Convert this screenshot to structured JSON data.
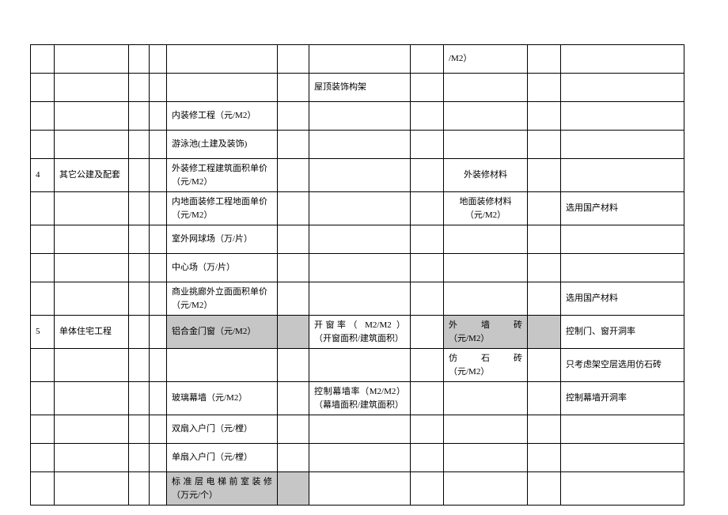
{
  "rows": [
    {
      "a": "",
      "b": "",
      "c": "",
      "d": "",
      "e": "",
      "f": "",
      "g": "",
      "h": "",
      "i": "/M2）",
      "j": "",
      "k": ""
    },
    {
      "a": "",
      "b": "",
      "c": "",
      "d": "",
      "e": "",
      "f": "",
      "g": "屋顶装饰构架",
      "h": "",
      "i": "",
      "j": "",
      "k": ""
    },
    {
      "a": "",
      "b": "",
      "c": "",
      "d": "",
      "e": "内装修工程（元/M2）",
      "f": "",
      "g": "",
      "h": "",
      "i": "",
      "j": "",
      "k": ""
    },
    {
      "a": "",
      "b": "",
      "c": "",
      "d": "",
      "e": "游泳池(土建及装饰)",
      "f": "",
      "g": "",
      "h": "",
      "i": "",
      "j": "",
      "k": ""
    },
    {
      "a": "4",
      "b": "其它公建及配套",
      "c": "",
      "d": "",
      "e": "外装修工程建筑面积单价（元/M2）",
      "f": "",
      "g": "",
      "h": "",
      "i": "外装修材料",
      "j": "",
      "k": "",
      "i_center": true,
      "tall": true
    },
    {
      "a": "",
      "b": "",
      "c": "",
      "d": "",
      "e": "内地面装修工程地面单价（元/M2）",
      "f": "",
      "g": "",
      "h": "",
      "i": "地面装修材料（元/M2）",
      "j": "",
      "k": "选用国产材料",
      "i_center": true,
      "tall": true
    },
    {
      "a": "",
      "b": "",
      "c": "",
      "d": "",
      "e": "室外网球场（万/片）",
      "f": "",
      "g": "",
      "h": "",
      "i": "",
      "j": "",
      "k": ""
    },
    {
      "a": "",
      "b": "",
      "c": "",
      "d": "",
      "e": "中心场（万/片）",
      "f": "",
      "g": "",
      "h": "",
      "i": "",
      "j": "",
      "k": ""
    },
    {
      "a": "",
      "b": "",
      "c": "",
      "d": "",
      "e": "商业挑廊外立面面积单价（元/M2）",
      "f": "",
      "g": "",
      "h": "",
      "i": "",
      "j": "",
      "k": "选用国产材料",
      "tall": true
    },
    {
      "a": "5",
      "b": "单体住宅工程",
      "c": "",
      "d": "",
      "e": "铝合金门窗（元/M2）",
      "f": "",
      "g1": "开窗率（ M2/M2 ）",
      "g2": "（开窗面积/建筑面积）",
      "h": "",
      "i1": "外墙砖",
      "i2": "（元/M2）",
      "j": "",
      "k": "控制门、窗开洞率",
      "e_shaded": true,
      "f_shaded": true,
      "i_shaded": true,
      "j_shaded": true,
      "twoLineG": true,
      "twoLineI": true,
      "tall": true
    },
    {
      "a": "",
      "b": "",
      "c": "",
      "d": "",
      "e": "",
      "f": "",
      "g": "",
      "h": "",
      "i1": "仿石砖",
      "i2": "（元/M2）",
      "j": "",
      "k": "只考虑架空层选用仿石砖",
      "twoLineI": true,
      "tall": true
    },
    {
      "a": "",
      "b": "",
      "c": "",
      "d": "",
      "e": "玻璃幕墙（元/M2）",
      "f": "",
      "g1": "控制幕墙率（M2/M2）",
      "g2": "（幕墙面积/建筑面积）",
      "h": "",
      "i": "",
      "j": "",
      "k": "控制幕墙开洞率",
      "twoLineG": true,
      "tall": true
    },
    {
      "a": "",
      "b": "",
      "c": "",
      "d": "",
      "e": "双扇入户门（元/樘）",
      "f": "",
      "g": "",
      "h": "",
      "i": "",
      "j": "",
      "k": ""
    },
    {
      "a": "",
      "b": "",
      "c": "",
      "d": "",
      "e": "单扇入户门（元/樘）",
      "f": "",
      "g": "",
      "h": "",
      "i": "",
      "j": "",
      "k": ""
    },
    {
      "a": "",
      "b": "",
      "c": "",
      "d": "",
      "e": "标准层电梯前室装修（万元/个）",
      "f": "",
      "g": "",
      "h": "",
      "i": "",
      "j": "",
      "k": "",
      "e_shaded": true,
      "f_shaded": true,
      "e_justify": true,
      "tall": true
    }
  ]
}
